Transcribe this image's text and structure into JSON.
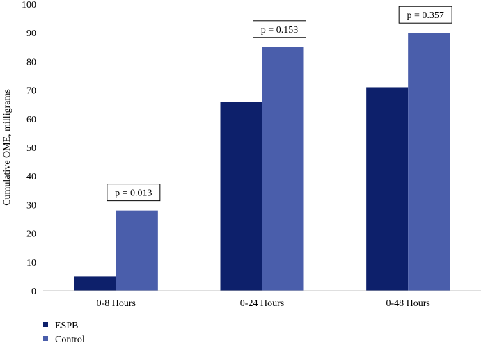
{
  "chart_data": {
    "type": "bar",
    "title": "",
    "xlabel": "",
    "ylabel": "Cumulative OME, milligrams",
    "ylim": [
      0,
      100
    ],
    "yticks": [
      "0",
      "10",
      "20",
      "30",
      "40",
      "50",
      "60",
      "70",
      "80",
      "90",
      "100"
    ],
    "categories": [
      "0-8 Hours",
      "0-24 Hours",
      "0-48 Hours"
    ],
    "series": [
      {
        "name": "ESPB",
        "values": [
          5,
          66,
          71
        ],
        "color": "#0d206b"
      },
      {
        "name": "Control",
        "values": [
          28,
          85,
          90
        ],
        "color": "#4a5eab"
      }
    ],
    "annotations": [
      "p = 0.013",
      "p = 0.153",
      "p = 0.357"
    ],
    "legend_position": "bottom-left",
    "grid": false
  }
}
